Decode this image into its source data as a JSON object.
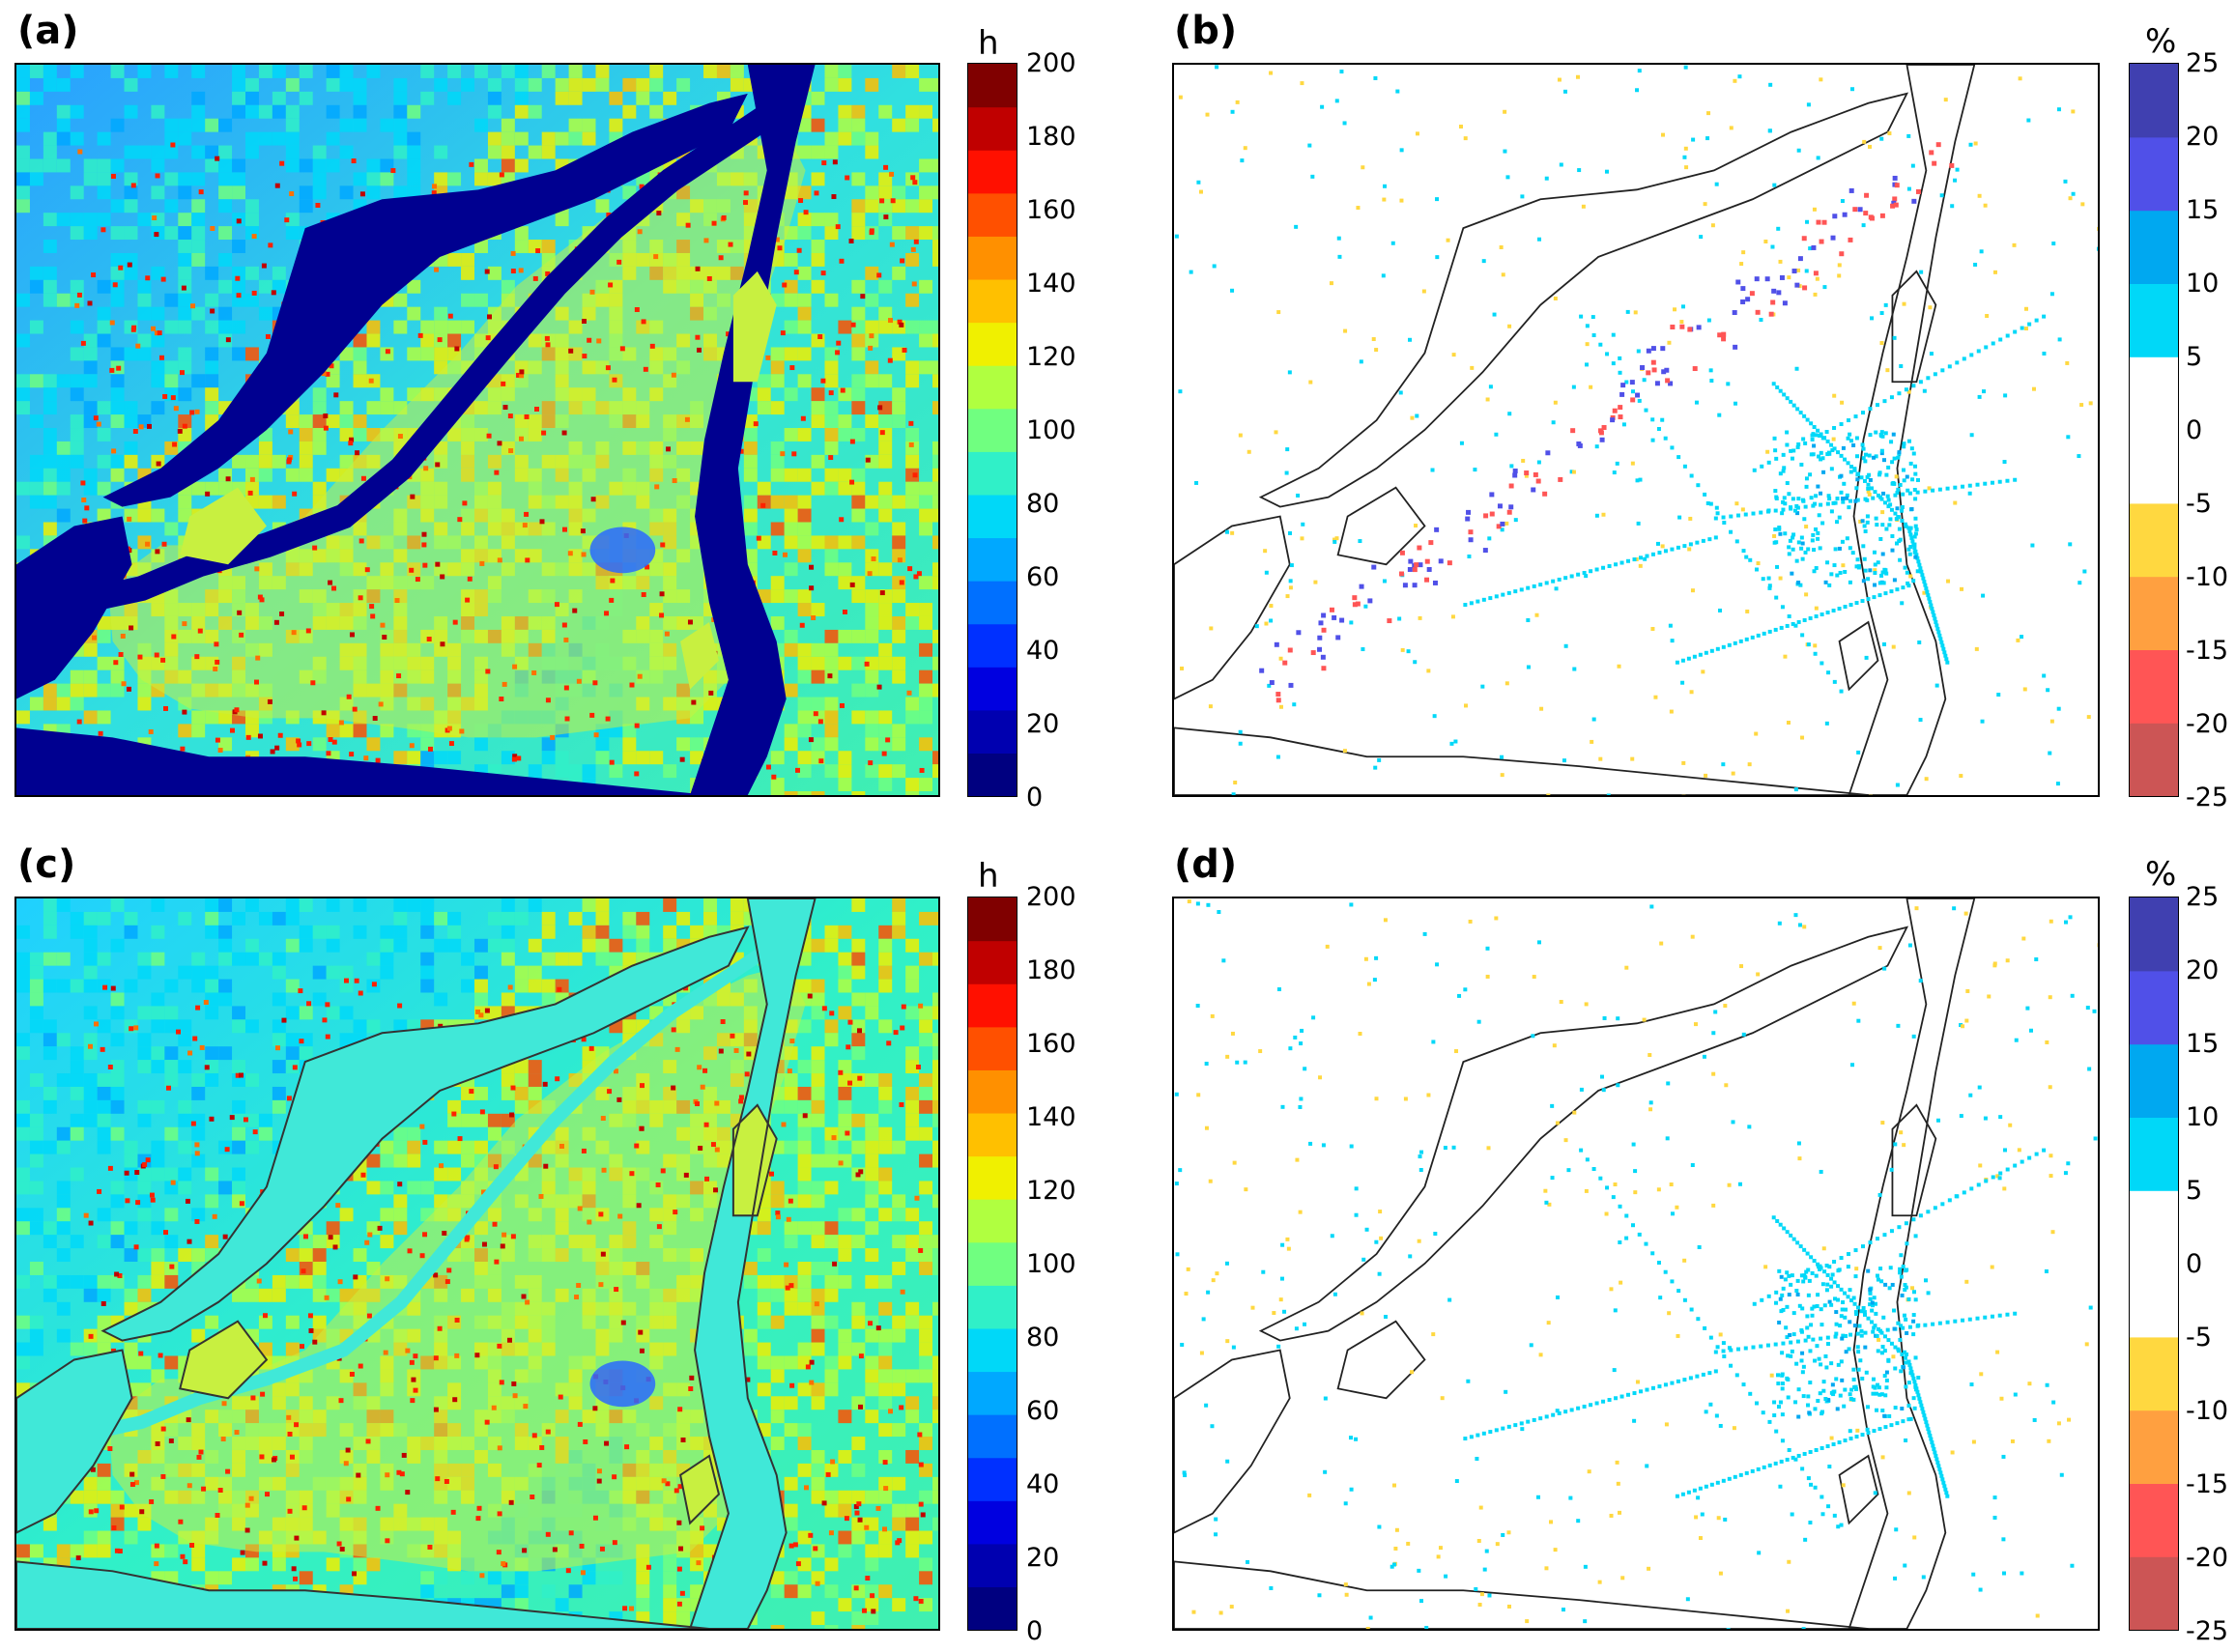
{
  "figure": {
    "panels": [
      {
        "id": "a",
        "label": "(a)"
      },
      {
        "id": "b",
        "label": "(b)"
      },
      {
        "id": "c",
        "label": "(c)"
      },
      {
        "id": "d",
        "label": "(d)"
      }
    ],
    "colorbars": {
      "hours": {
        "unit": "h",
        "ticks": [
          "200",
          "180",
          "160",
          "140",
          "120",
          "100",
          "80",
          "60",
          "40",
          "20",
          "0"
        ],
        "range": [
          0,
          200
        ],
        "colors": [
          "#000080",
          "#0000b0",
          "#0000e0",
          "#0030ff",
          "#0070ff",
          "#00a8ff",
          "#00d8f8",
          "#30f0c8",
          "#70ff80",
          "#b0ff40",
          "#f0f000",
          "#ffc000",
          "#ff9000",
          "#ff5000",
          "#ff1000",
          "#c00000",
          "#800000"
        ]
      },
      "percent": {
        "unit": "%",
        "ticks": [
          "25",
          "20",
          "15",
          "10",
          "5",
          "0",
          "-5",
          "-10",
          "-15",
          "-20",
          "-25"
        ],
        "range": [
          -25,
          25
        ],
        "colors": [
          "#cc5555",
          "#ff5555",
          "#ffa040",
          "#ffd840",
          "#ffffff",
          "#ffffff",
          "#00d8f8",
          "#00a8f0",
          "#5050e8",
          "#4040b0"
        ]
      }
    }
  },
  "chart_data": [
    {
      "type": "heatmap",
      "panel": "(a)",
      "colorbar_unit": "h",
      "value_range": [
        0,
        200
      ],
      "water_value": 0,
      "land_typical_range": [
        60,
        140
      ],
      "hotspots_max": 200
    },
    {
      "type": "heatmap",
      "panel": "(b)",
      "colorbar_unit": "%",
      "value_range": [
        -25,
        25
      ],
      "background": 0
    },
    {
      "type": "heatmap",
      "panel": "(c)",
      "colorbar_unit": "h",
      "value_range": [
        0,
        200
      ],
      "water_value": 80,
      "land_typical_range": [
        60,
        140
      ],
      "hotspots_max": 200
    },
    {
      "type": "heatmap",
      "panel": "(d)",
      "colorbar_unit": "%",
      "value_range": [
        -25,
        25
      ],
      "background": 0
    }
  ]
}
